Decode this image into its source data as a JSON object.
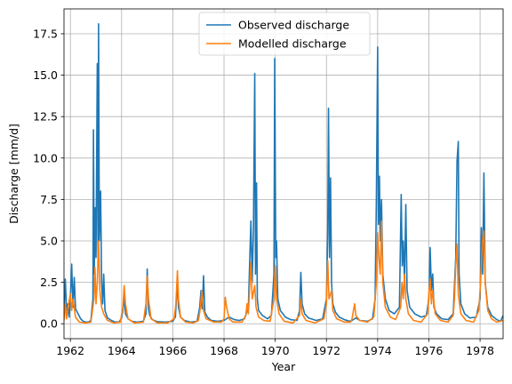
{
  "chart_data": {
    "type": "line",
    "xlabel": "Year",
    "ylabel": "Discharge [mm/d]",
    "xlim": [
      1961.75,
      1978.9
    ],
    "ylim": [
      -0.9,
      19.0
    ],
    "grid": true,
    "legend_position": "top-center",
    "x_ticks": [
      {
        "value": 1962,
        "label": "1962"
      },
      {
        "value": 1964,
        "label": "1964"
      },
      {
        "value": 1966,
        "label": "1966"
      },
      {
        "value": 1968,
        "label": "1968"
      },
      {
        "value": 1970,
        "label": "1970"
      },
      {
        "value": 1972,
        "label": "1972"
      },
      {
        "value": 1974,
        "label": "1974"
      },
      {
        "value": 1976,
        "label": "1976"
      },
      {
        "value": 1978,
        "label": "1978"
      }
    ],
    "y_ticks": [
      {
        "value": 0.0,
        "label": "0.0"
      },
      {
        "value": 2.5,
        "label": "2.5"
      },
      {
        "value": 5.0,
        "label": "5.0"
      },
      {
        "value": 7.5,
        "label": "7.5"
      },
      {
        "value": 10.0,
        "label": "10.0"
      },
      {
        "value": 12.5,
        "label": "12.5"
      },
      {
        "value": 15.0,
        "label": "15.0"
      },
      {
        "value": 17.5,
        "label": "17.5"
      }
    ],
    "series": [
      {
        "name": "Observed discharge",
        "color": "#1f77b4",
        "points": [
          [
            1961.75,
            0.6
          ],
          [
            1961.8,
            2.7
          ],
          [
            1961.85,
            0.8
          ],
          [
            1961.9,
            1.2
          ],
          [
            1961.95,
            0.4
          ],
          [
            1962.0,
            1.5
          ],
          [
            1962.05,
            3.6
          ],
          [
            1962.1,
            1.0
          ],
          [
            1962.15,
            2.8
          ],
          [
            1962.2,
            0.9
          ],
          [
            1962.3,
            0.6
          ],
          [
            1962.4,
            0.3
          ],
          [
            1962.5,
            0.15
          ],
          [
            1962.6,
            0.1
          ],
          [
            1962.7,
            0.1
          ],
          [
            1962.8,
            0.2
          ],
          [
            1962.88,
            1.5
          ],
          [
            1962.9,
            11.7
          ],
          [
            1962.93,
            3.0
          ],
          [
            1962.97,
            7.0
          ],
          [
            1963.0,
            4.0
          ],
          [
            1963.05,
            15.7
          ],
          [
            1963.08,
            3.5
          ],
          [
            1963.1,
            18.1
          ],
          [
            1963.13,
            5.0
          ],
          [
            1963.18,
            8.0
          ],
          [
            1963.22,
            2.5
          ],
          [
            1963.26,
            1.2
          ],
          [
            1963.3,
            3.0
          ],
          [
            1963.35,
            0.8
          ],
          [
            1963.45,
            0.35
          ],
          [
            1963.6,
            0.2
          ],
          [
            1963.75,
            0.1
          ],
          [
            1963.9,
            0.1
          ],
          [
            1964.0,
            0.35
          ],
          [
            1964.05,
            0.8
          ],
          [
            1964.1,
            1.6
          ],
          [
            1964.15,
            0.6
          ],
          [
            1964.25,
            0.3
          ],
          [
            1964.4,
            0.15
          ],
          [
            1964.6,
            0.1
          ],
          [
            1964.85,
            0.15
          ],
          [
            1964.95,
            0.6
          ],
          [
            1965.0,
            3.3
          ],
          [
            1965.05,
            0.9
          ],
          [
            1965.1,
            0.5
          ],
          [
            1965.2,
            0.25
          ],
          [
            1965.4,
            0.12
          ],
          [
            1965.7,
            0.1
          ],
          [
            1966.0,
            0.15
          ],
          [
            1966.1,
            0.4
          ],
          [
            1966.18,
            2.5
          ],
          [
            1966.22,
            1.0
          ],
          [
            1966.3,
            0.4
          ],
          [
            1966.45,
            0.2
          ],
          [
            1966.7,
            0.1
          ],
          [
            1966.95,
            0.15
          ],
          [
            1967.05,
            1.0
          ],
          [
            1967.1,
            2.0
          ],
          [
            1967.15,
            0.9
          ],
          [
            1967.2,
            2.9
          ],
          [
            1967.25,
            0.7
          ],
          [
            1967.35,
            0.4
          ],
          [
            1967.5,
            0.2
          ],
          [
            1967.75,
            0.15
          ],
          [
            1968.0,
            0.2
          ],
          [
            1968.2,
            0.4
          ],
          [
            1968.4,
            0.25
          ],
          [
            1968.6,
            0.2
          ],
          [
            1968.8,
            0.3
          ],
          [
            1968.95,
            1.0
          ],
          [
            1969.05,
            6.2
          ],
          [
            1969.1,
            2.5
          ],
          [
            1969.15,
            5.8
          ],
          [
            1969.2,
            15.1
          ],
          [
            1969.23,
            3.0
          ],
          [
            1969.27,
            8.5
          ],
          [
            1969.3,
            1.5
          ],
          [
            1969.35,
            0.8
          ],
          [
            1969.5,
            0.5
          ],
          [
            1969.7,
            0.3
          ],
          [
            1969.85,
            0.5
          ],
          [
            1969.95,
            3.0
          ],
          [
            1969.98,
            16.0
          ],
          [
            1970.02,
            4.0
          ],
          [
            1970.05,
            5.0
          ],
          [
            1970.1,
            1.5
          ],
          [
            1970.2,
            0.8
          ],
          [
            1970.4,
            0.4
          ],
          [
            1970.6,
            0.25
          ],
          [
            1970.85,
            0.2
          ],
          [
            1970.95,
            0.8
          ],
          [
            1971.0,
            3.1
          ],
          [
            1971.05,
            1.2
          ],
          [
            1971.15,
            0.6
          ],
          [
            1971.3,
            0.35
          ],
          [
            1971.6,
            0.2
          ],
          [
            1971.85,
            0.3
          ],
          [
            1972.0,
            1.5
          ],
          [
            1972.05,
            5.5
          ],
          [
            1972.08,
            13.0
          ],
          [
            1972.12,
            4.0
          ],
          [
            1972.16,
            8.8
          ],
          [
            1972.2,
            2.5
          ],
          [
            1972.25,
            1.2
          ],
          [
            1972.35,
            0.7
          ],
          [
            1972.5,
            0.4
          ],
          [
            1972.7,
            0.25
          ],
          [
            1972.9,
            0.15
          ],
          [
            1973.0,
            0.2
          ],
          [
            1973.15,
            0.35
          ],
          [
            1973.3,
            0.2
          ],
          [
            1973.6,
            0.15
          ],
          [
            1973.8,
            0.3
          ],
          [
            1973.9,
            1.5
          ],
          [
            1973.95,
            7.5
          ],
          [
            1974.0,
            16.7
          ],
          [
            1974.03,
            6.0
          ],
          [
            1974.07,
            8.9
          ],
          [
            1974.1,
            5.0
          ],
          [
            1974.15,
            7.5
          ],
          [
            1974.2,
            3.0
          ],
          [
            1974.3,
            1.5
          ],
          [
            1974.45,
            0.8
          ],
          [
            1974.65,
            0.6
          ],
          [
            1974.85,
            1.0
          ],
          [
            1974.92,
            7.8
          ],
          [
            1974.96,
            3.5
          ],
          [
            1975.0,
            5.0
          ],
          [
            1975.05,
            2.5
          ],
          [
            1975.1,
            7.2
          ],
          [
            1975.15,
            2.0
          ],
          [
            1975.25,
            1.0
          ],
          [
            1975.45,
            0.6
          ],
          [
            1975.7,
            0.4
          ],
          [
            1975.9,
            0.5
          ],
          [
            1976.0,
            1.5
          ],
          [
            1976.05,
            4.6
          ],
          [
            1976.1,
            2.0
          ],
          [
            1976.15,
            3.0
          ],
          [
            1976.2,
            1.0
          ],
          [
            1976.3,
            0.6
          ],
          [
            1976.5,
            0.3
          ],
          [
            1976.75,
            0.25
          ],
          [
            1976.95,
            0.6
          ],
          [
            1977.05,
            4.0
          ],
          [
            1977.1,
            9.8
          ],
          [
            1977.15,
            11.0
          ],
          [
            1977.18,
            3.0
          ],
          [
            1977.25,
            1.2
          ],
          [
            1977.4,
            0.6
          ],
          [
            1977.6,
            0.35
          ],
          [
            1977.85,
            0.4
          ],
          [
            1978.0,
            1.5
          ],
          [
            1978.05,
            5.8
          ],
          [
            1978.1,
            3.0
          ],
          [
            1978.15,
            9.1
          ],
          [
            1978.2,
            2.5
          ],
          [
            1978.3,
            1.0
          ],
          [
            1978.45,
            0.5
          ],
          [
            1978.65,
            0.25
          ],
          [
            1978.8,
            0.15
          ],
          [
            1978.9,
            0.5
          ]
        ]
      },
      {
        "name": "Modelled discharge",
        "color": "#ff7f0e",
        "points": [
          [
            1961.75,
            0.2
          ],
          [
            1961.8,
            1.2
          ],
          [
            1961.85,
            0.3
          ],
          [
            1961.9,
            0.9
          ],
          [
            1962.0,
            1.8
          ],
          [
            1962.05,
            0.8
          ],
          [
            1962.1,
            1.5
          ],
          [
            1962.2,
            0.4
          ],
          [
            1962.35,
            0.1
          ],
          [
            1962.6,
            0.05
          ],
          [
            1962.8,
            0.1
          ],
          [
            1962.92,
            1.5
          ],
          [
            1962.96,
            3.4
          ],
          [
            1963.0,
            1.2
          ],
          [
            1963.05,
            2.5
          ],
          [
            1963.1,
            5.0
          ],
          [
            1963.15,
            2.0
          ],
          [
            1963.22,
            1.0
          ],
          [
            1963.3,
            0.6
          ],
          [
            1963.45,
            0.2
          ],
          [
            1963.7,
            0.05
          ],
          [
            1963.95,
            0.1
          ],
          [
            1964.05,
            1.0
          ],
          [
            1964.1,
            2.3
          ],
          [
            1964.15,
            1.2
          ],
          [
            1964.25,
            0.3
          ],
          [
            1964.5,
            0.05
          ],
          [
            1964.85,
            0.1
          ],
          [
            1964.95,
            1.2
          ],
          [
            1965.0,
            2.9
          ],
          [
            1965.05,
            1.5
          ],
          [
            1965.15,
            0.3
          ],
          [
            1965.4,
            0.05
          ],
          [
            1965.8,
            0.05
          ],
          [
            1966.05,
            0.3
          ],
          [
            1966.12,
            1.2
          ],
          [
            1966.18,
            3.2
          ],
          [
            1966.22,
            1.5
          ],
          [
            1966.3,
            0.4
          ],
          [
            1966.5,
            0.1
          ],
          [
            1966.8,
            0.05
          ],
          [
            1967.0,
            0.2
          ],
          [
            1967.08,
            1.0
          ],
          [
            1967.13,
            2.0
          ],
          [
            1967.2,
            0.8
          ],
          [
            1967.3,
            0.3
          ],
          [
            1967.6,
            0.1
          ],
          [
            1967.9,
            0.1
          ],
          [
            1968.0,
            0.3
          ],
          [
            1968.05,
            1.6
          ],
          [
            1968.1,
            1.0
          ],
          [
            1968.2,
            0.3
          ],
          [
            1968.35,
            0.1
          ],
          [
            1968.7,
            0.1
          ],
          [
            1968.85,
            0.5
          ],
          [
            1968.9,
            1.2
          ],
          [
            1968.95,
            0.6
          ],
          [
            1969.05,
            3.7
          ],
          [
            1969.1,
            1.5
          ],
          [
            1969.2,
            2.3
          ],
          [
            1969.25,
            1.0
          ],
          [
            1969.35,
            0.4
          ],
          [
            1969.55,
            0.2
          ],
          [
            1969.8,
            0.15
          ],
          [
            1969.95,
            1.5
          ],
          [
            1970.0,
            3.5
          ],
          [
            1970.05,
            1.5
          ],
          [
            1970.15,
            0.6
          ],
          [
            1970.35,
            0.15
          ],
          [
            1970.7,
            0.05
          ],
          [
            1970.95,
            0.5
          ],
          [
            1971.0,
            1.5
          ],
          [
            1971.05,
            0.6
          ],
          [
            1971.2,
            0.2
          ],
          [
            1971.55,
            0.05
          ],
          [
            1971.9,
            0.3
          ],
          [
            1972.0,
            1.2
          ],
          [
            1972.05,
            3.8
          ],
          [
            1972.1,
            1.5
          ],
          [
            1972.2,
            2.0
          ],
          [
            1972.25,
            0.8
          ],
          [
            1972.4,
            0.3
          ],
          [
            1972.7,
            0.1
          ],
          [
            1972.95,
            0.1
          ],
          [
            1973.0,
            0.3
          ],
          [
            1973.1,
            1.2
          ],
          [
            1973.15,
            0.5
          ],
          [
            1973.3,
            0.2
          ],
          [
            1973.6,
            0.1
          ],
          [
            1973.85,
            0.4
          ],
          [
            1973.95,
            2.5
          ],
          [
            1974.0,
            5.5
          ],
          [
            1974.05,
            4.0
          ],
          [
            1974.1,
            3.0
          ],
          [
            1974.15,
            6.2
          ],
          [
            1974.2,
            2.5
          ],
          [
            1974.3,
            1.0
          ],
          [
            1974.5,
            0.4
          ],
          [
            1974.7,
            0.25
          ],
          [
            1974.9,
            1.0
          ],
          [
            1974.95,
            2.5
          ],
          [
            1975.0,
            1.5
          ],
          [
            1975.05,
            3.0
          ],
          [
            1975.1,
            1.5
          ],
          [
            1975.2,
            0.6
          ],
          [
            1975.4,
            0.2
          ],
          [
            1975.7,
            0.1
          ],
          [
            1975.95,
            0.6
          ],
          [
            1976.0,
            1.8
          ],
          [
            1976.05,
            2.7
          ],
          [
            1976.1,
            1.2
          ],
          [
            1976.15,
            2.0
          ],
          [
            1976.25,
            0.6
          ],
          [
            1976.45,
            0.2
          ],
          [
            1976.75,
            0.1
          ],
          [
            1976.95,
            0.5
          ],
          [
            1977.0,
            1.5
          ],
          [
            1977.05,
            3.5
          ],
          [
            1977.1,
            4.8
          ],
          [
            1977.15,
            1.8
          ],
          [
            1977.25,
            0.6
          ],
          [
            1977.45,
            0.2
          ],
          [
            1977.75,
            0.1
          ],
          [
            1977.95,
            0.8
          ],
          [
            1978.0,
            2.0
          ],
          [
            1978.05,
            3.5
          ],
          [
            1978.1,
            5.0
          ],
          [
            1978.15,
            5.6
          ],
          [
            1978.2,
            2.5
          ],
          [
            1978.3,
            0.8
          ],
          [
            1978.45,
            0.3
          ],
          [
            1978.65,
            0.1
          ],
          [
            1978.9,
            0.2
          ]
        ]
      }
    ]
  }
}
